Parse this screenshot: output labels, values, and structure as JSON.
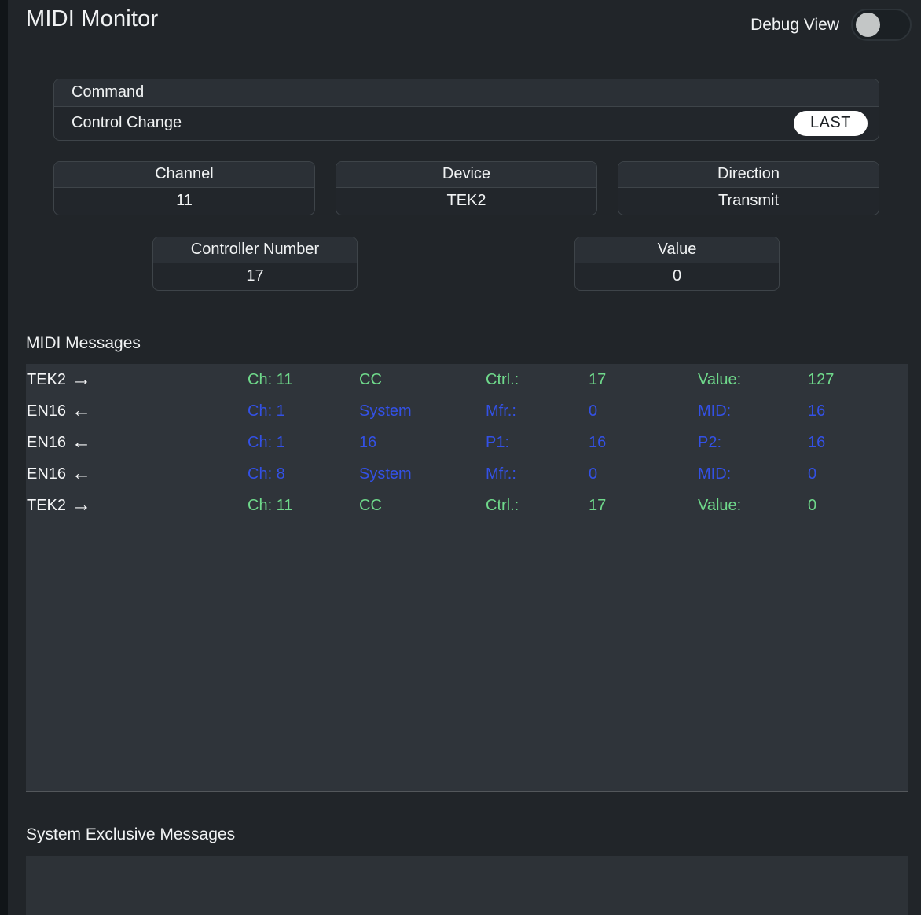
{
  "header": {
    "title": "MIDI Monitor",
    "debug_toggle": {
      "label": "Debug View",
      "state": "off"
    }
  },
  "command_panel": {
    "label": "Command",
    "value": "Control Change",
    "last_button": "LAST"
  },
  "info_panels": [
    {
      "label": "Channel",
      "value": "11"
    },
    {
      "label": "Device",
      "value": "TEK2"
    },
    {
      "label": "Direction",
      "value": "Transmit"
    }
  ],
  "param_panels": [
    {
      "label": "Controller Number",
      "value": "17"
    },
    {
      "label": "Value",
      "value": "0"
    }
  ],
  "midi_messages": {
    "title": "MIDI Messages",
    "rows": [
      {
        "device": "TEK2",
        "arrow": "→",
        "direction": "transmit",
        "channel": "Ch: 11",
        "type": "CC",
        "label1": "Ctrl.:",
        "value1": "17",
        "label2": "Value:",
        "value2": "127",
        "color": "green"
      },
      {
        "device": "EN16",
        "arrow": "←",
        "direction": "receive",
        "channel": "Ch: 1",
        "type": "System",
        "label1": "Mfr.:",
        "value1": "0",
        "label2": "MID:",
        "value2": "16",
        "color": "blue"
      },
      {
        "device": "EN16",
        "arrow": "←",
        "direction": "receive",
        "channel": "Ch: 1",
        "type": "16",
        "label1": "P1:",
        "value1": "16",
        "label2": "P2:",
        "value2": "16",
        "color": "blue"
      },
      {
        "device": "EN16",
        "arrow": "←",
        "direction": "receive",
        "channel": "Ch: 8",
        "type": "System",
        "label1": "Mfr.:",
        "value1": "0",
        "label2": "MID:",
        "value2": "0",
        "color": "blue"
      },
      {
        "device": "TEK2",
        "arrow": "→",
        "direction": "transmit",
        "channel": "Ch: 11",
        "type": "CC",
        "label1": "Ctrl.:",
        "value1": "17",
        "label2": "Value:",
        "value2": "0",
        "color": "green"
      }
    ]
  },
  "sysex": {
    "title": "System Exclusive Messages"
  },
  "colors": {
    "transmit_green": "#6fd98b",
    "receive_blue": "#3351e6",
    "page_bg": "#212529",
    "panel_bg": "#2f343a"
  }
}
